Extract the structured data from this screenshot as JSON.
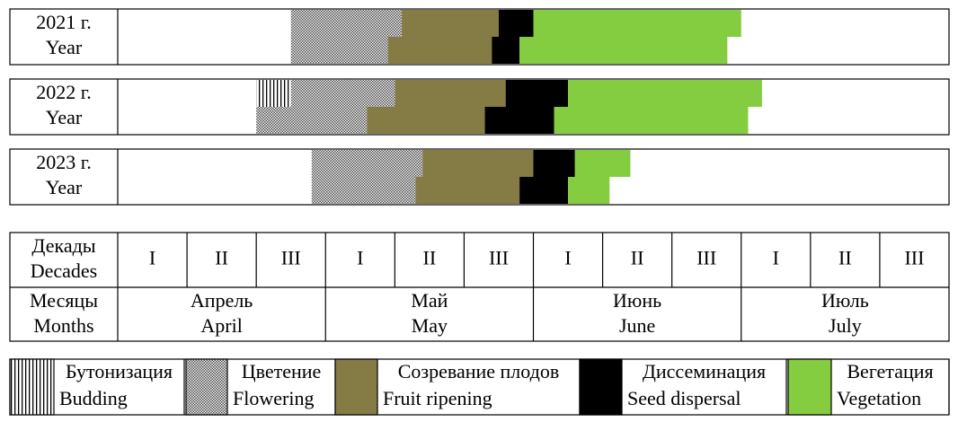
{
  "chart_data": {
    "type": "gantt",
    "xlim": [
      0,
      12
    ],
    "phases": [
      {
        "name": [
          "Бутонизация",
          "Budding"
        ],
        "pattern": "vertical-lines"
      },
      {
        "name": [
          "Цветение",
          "Flowering"
        ],
        "pattern": "checker"
      },
      {
        "name": [
          "Созревание плодов",
          "Fruit ripening"
        ],
        "color": "#857b45"
      },
      {
        "name": [
          "Диссеминация",
          "Seed dispersal"
        ],
        "color": "#000000"
      },
      {
        "name": [
          "Вегетация",
          "Vegetation"
        ],
        "color": "#84cc40"
      }
    ],
    "rows": [
      {
        "label": [
          "2021 г.",
          "Year"
        ],
        "top": [
          null,
          [
            2.5,
            4.1
          ],
          [
            4.1,
            5.5
          ],
          [
            5.5,
            6.0
          ],
          [
            6.0,
            9.0
          ]
        ],
        "bottom": [
          null,
          [
            2.5,
            3.9
          ],
          [
            3.9,
            5.4
          ],
          [
            5.4,
            5.8
          ],
          [
            5.8,
            8.8
          ]
        ]
      },
      {
        "label": [
          "2022 г.",
          "Year"
        ],
        "top": [
          [
            2.0,
            2.5
          ],
          [
            2.5,
            4.0
          ],
          [
            4.0,
            5.6
          ],
          [
            5.6,
            6.5
          ],
          [
            6.5,
            9.3
          ]
        ],
        "bottom": [
          null,
          [
            2.0,
            3.6
          ],
          [
            3.6,
            5.3
          ],
          [
            5.3,
            6.3
          ],
          [
            6.3,
            9.1
          ]
        ]
      },
      {
        "label": [
          "2023 г.",
          "Year"
        ],
        "top": [
          null,
          [
            2.8,
            4.4
          ],
          [
            4.4,
            6.0
          ],
          [
            6.0,
            6.6
          ],
          [
            6.6,
            7.4
          ]
        ],
        "bottom": [
          null,
          [
            2.8,
            4.3
          ],
          [
            4.3,
            5.8
          ],
          [
            5.8,
            6.5
          ],
          [
            6.5,
            7.1
          ]
        ]
      }
    ],
    "decades_header": [
      "Декады",
      "Decades"
    ],
    "decades": [
      "I",
      "II",
      "III",
      "I",
      "II",
      "III",
      "I",
      "II",
      "III",
      "I",
      "II",
      "III"
    ],
    "months_header": [
      "Месяцы",
      "Months"
    ],
    "months": [
      [
        "Апрель",
        "April"
      ],
      [
        "Май",
        "May"
      ],
      [
        "Июнь",
        "June"
      ],
      [
        "Июль",
        "July"
      ]
    ]
  }
}
